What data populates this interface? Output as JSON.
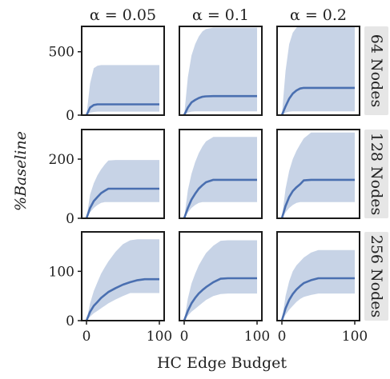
{
  "figure": {
    "xlabel": "HC Edge Budget",
    "ylabel": "%Baseline",
    "col_labels": [
      "α = 0.05",
      "α = 0.1",
      "α = 0.2"
    ],
    "row_labels": [
      "64 Nodes",
      "128 Nodes",
      "256 Nodes"
    ],
    "x_ticks": [
      "0",
      "100"
    ],
    "colors": {
      "line": "#4a6fb0",
      "band": "#c7d3e6",
      "strip": "#e6e6e6",
      "axes": "#1a1a1a"
    }
  },
  "chart_data": [
    {
      "type": "line",
      "row": 0,
      "col": 0,
      "xlim": [
        0,
        100
      ],
      "ylim": [
        0,
        700
      ],
      "yticks": [
        0,
        500
      ],
      "x": [
        0,
        5,
        10,
        15,
        20,
        25,
        30,
        40,
        50,
        60,
        70,
        80,
        90,
        100
      ],
      "mean": [
        0,
        60,
        80,
        85,
        85,
        85,
        85,
        85,
        85,
        85,
        85,
        85,
        85,
        85
      ],
      "upper": [
        0,
        250,
        370,
        390,
        395,
        395,
        395,
        395,
        395,
        395,
        395,
        395,
        395,
        395
      ],
      "lower": [
        0,
        20,
        25,
        28,
        28,
        28,
        28,
        28,
        28,
        28,
        28,
        28,
        28,
        28
      ]
    },
    {
      "type": "line",
      "row": 0,
      "col": 1,
      "xlim": [
        0,
        100
      ],
      "ylim": [
        0,
        700
      ],
      "yticks": [],
      "x": [
        0,
        5,
        10,
        15,
        20,
        25,
        30,
        40,
        50,
        60,
        70,
        80,
        90,
        100
      ],
      "mean": [
        0,
        60,
        100,
        120,
        135,
        145,
        148,
        150,
        150,
        150,
        150,
        150,
        150,
        150
      ],
      "upper": [
        0,
        300,
        470,
        560,
        620,
        660,
        680,
        690,
        690,
        690,
        690,
        690,
        690,
        690
      ],
      "lower": [
        0,
        20,
        28,
        30,
        30,
        30,
        30,
        30,
        30,
        30,
        30,
        30,
        30,
        30
      ]
    },
    {
      "type": "line",
      "row": 0,
      "col": 2,
      "xlim": [
        0,
        100
      ],
      "ylim": [
        0,
        700
      ],
      "yticks": [],
      "x": [
        0,
        5,
        10,
        15,
        20,
        25,
        30,
        40,
        50,
        60,
        70,
        80,
        90,
        100
      ],
      "mean": [
        0,
        70,
        130,
        170,
        195,
        210,
        215,
        215,
        215,
        215,
        215,
        215,
        215,
        215
      ],
      "upper": [
        0,
        350,
        560,
        650,
        690,
        710,
        710,
        710,
        710,
        710,
        710,
        710,
        710,
        710
      ],
      "lower": [
        0,
        20,
        28,
        30,
        30,
        30,
        30,
        30,
        30,
        30,
        30,
        30,
        30,
        30
      ]
    },
    {
      "type": "line",
      "row": 1,
      "col": 0,
      "xlim": [
        0,
        100
      ],
      "ylim": [
        0,
        300
      ],
      "yticks": [
        0,
        200
      ],
      "x": [
        0,
        5,
        10,
        15,
        20,
        25,
        30,
        40,
        50,
        60,
        70,
        80,
        90,
        100
      ],
      "mean": [
        0,
        35,
        58,
        72,
        85,
        93,
        100,
        100,
        100,
        100,
        100,
        100,
        100,
        100
      ],
      "upper": [
        0,
        80,
        118,
        145,
        165,
        182,
        195,
        197,
        197,
        197,
        197,
        197,
        197,
        197
      ],
      "lower": [
        0,
        20,
        35,
        45,
        52,
        55,
        55,
        55,
        55,
        55,
        55,
        55,
        55,
        55
      ]
    },
    {
      "type": "line",
      "row": 1,
      "col": 1,
      "xlim": [
        0,
        100
      ],
      "ylim": [
        0,
        300
      ],
      "yticks": [],
      "x": [
        0,
        5,
        10,
        15,
        20,
        25,
        30,
        40,
        50,
        60,
        70,
        80,
        90,
        100
      ],
      "mean": [
        0,
        35,
        63,
        83,
        100,
        112,
        122,
        130,
        130,
        130,
        130,
        130,
        130,
        130
      ],
      "upper": [
        0,
        95,
        150,
        190,
        220,
        243,
        260,
        275,
        275,
        275,
        275,
        275,
        275,
        275
      ],
      "lower": [
        0,
        20,
        35,
        45,
        52,
        55,
        55,
        55,
        55,
        55,
        55,
        55,
        55,
        55
      ]
    },
    {
      "type": "line",
      "row": 1,
      "col": 2,
      "xlim": [
        0,
        100
      ],
      "ylim": [
        0,
        300
      ],
      "yticks": [],
      "x": [
        0,
        5,
        10,
        15,
        20,
        25,
        30,
        40,
        50,
        60,
        70,
        80,
        90,
        100
      ],
      "mean": [
        0,
        42,
        72,
        92,
        105,
        115,
        128,
        130,
        130,
        130,
        130,
        130,
        130,
        130
      ],
      "upper": [
        0,
        100,
        160,
        200,
        228,
        250,
        270,
        290,
        290,
        290,
        290,
        290,
        290,
        290
      ],
      "lower": [
        0,
        20,
        35,
        45,
        52,
        55,
        55,
        55,
        55,
        55,
        55,
        55,
        55,
        55
      ]
    },
    {
      "type": "line",
      "row": 2,
      "col": 0,
      "xlim": [
        0,
        100
      ],
      "ylim": [
        0,
        180
      ],
      "yticks": [
        0,
        100
      ],
      "x": [
        0,
        5,
        10,
        15,
        20,
        25,
        30,
        40,
        50,
        60,
        70,
        80,
        90,
        100
      ],
      "mean": [
        0,
        18,
        30,
        38,
        46,
        52,
        58,
        66,
        73,
        78,
        82,
        84,
        84,
        84
      ],
      "upper": [
        0,
        35,
        60,
        78,
        95,
        108,
        120,
        140,
        155,
        163,
        165,
        165,
        165,
        165
      ],
      "lower": [
        0,
        8,
        15,
        20,
        25,
        30,
        35,
        43,
        50,
        56,
        56,
        56,
        56,
        56
      ]
    },
    {
      "type": "line",
      "row": 2,
      "col": 1,
      "xlim": [
        0,
        100
      ],
      "ylim": [
        0,
        180
      ],
      "yticks": [],
      "x": [
        0,
        5,
        10,
        15,
        20,
        25,
        30,
        40,
        50,
        60,
        70,
        80,
        90,
        100
      ],
      "mean": [
        0,
        20,
        35,
        46,
        55,
        62,
        68,
        78,
        85,
        86,
        86,
        86,
        86,
        86
      ],
      "upper": [
        0,
        45,
        75,
        95,
        112,
        125,
        137,
        152,
        162,
        163,
        163,
        163,
        163,
        163
      ],
      "lower": [
        0,
        10,
        18,
        24,
        30,
        36,
        42,
        50,
        54,
        55,
        55,
        55,
        55,
        55
      ]
    },
    {
      "type": "line",
      "row": 2,
      "col": 2,
      "xlim": [
        0,
        100
      ],
      "ylim": [
        0,
        180
      ],
      "yticks": [],
      "x": [
        0,
        5,
        10,
        15,
        20,
        25,
        30,
        40,
        50,
        60,
        70,
        80,
        90,
        100
      ],
      "mean": [
        0,
        25,
        42,
        54,
        63,
        70,
        76,
        82,
        86,
        86,
        86,
        86,
        86,
        86
      ],
      "upper": [
        0,
        50,
        80,
        100,
        112,
        120,
        128,
        138,
        143,
        143,
        143,
        143,
        143,
        143
      ],
      "lower": [
        0,
        12,
        22,
        30,
        38,
        44,
        48,
        52,
        55,
        55,
        55,
        55,
        55,
        55
      ]
    }
  ]
}
